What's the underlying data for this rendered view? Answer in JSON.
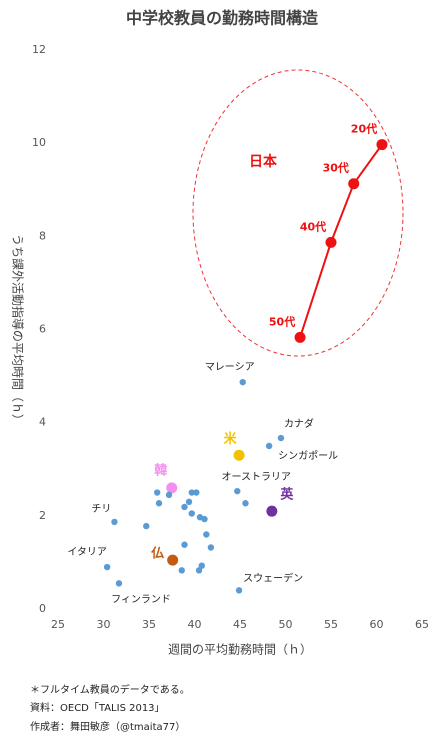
{
  "chart_data": {
    "type": "scatter",
    "title": "中学校教員の勤務時間構造",
    "x_label": "週間の平均勤務時間（ｈ）",
    "y_label": "うち課外活動指導の平均時間（ｈ）",
    "xlim": [
      25,
      65
    ],
    "xticks": [
      25,
      30,
      35,
      40,
      45,
      50,
      55,
      60,
      65
    ],
    "ylim": [
      0,
      12
    ],
    "yticks": [
      0,
      2,
      4,
      6,
      8,
      10,
      12
    ],
    "grid": false,
    "series": [
      {
        "name": "日本",
        "color": "#ee1111",
        "line": true,
        "x": [
          60.6,
          57.5,
          55.0,
          51.6
        ],
        "y": [
          9.97,
          9.13,
          7.87,
          5.83
        ],
        "point_labels": [
          "20代",
          "30代",
          "40代",
          "50代"
        ]
      },
      {
        "name": "米",
        "color": "#f2c200",
        "x": [
          44.9
        ],
        "y": [
          3.3
        ]
      },
      {
        "name": "韓",
        "color": "#f48ff0",
        "x": [
          37.5
        ],
        "y": [
          2.6
        ]
      },
      {
        "name": "英",
        "color": "#7030a0",
        "x": [
          48.5
        ],
        "y": [
          2.1
        ]
      },
      {
        "name": "仏",
        "color": "#c55a11",
        "x": [
          37.6
        ],
        "y": [
          1.05
        ]
      },
      {
        "color": "#5b9bd5",
        "x": [
          45.3,
          49.5,
          48.2,
          44.7,
          31.2,
          30.4,
          31.7,
          44.9,
          35.9,
          36.1,
          37.2,
          38.9,
          39.4,
          39.7,
          40.2,
          39.7,
          40.6,
          41.1,
          41.3,
          41.8,
          40.8,
          40.5,
          38.6,
          38.9,
          34.7,
          45.6
        ],
        "y": [
          4.87,
          3.67,
          3.5,
          2.53,
          1.87,
          0.9,
          0.55,
          0.4,
          2.5,
          2.27,
          2.45,
          2.19,
          2.3,
          2.5,
          2.5,
          2.05,
          1.97,
          1.93,
          1.6,
          1.32,
          0.93,
          0.83,
          0.83,
          1.38,
          1.78,
          2.27
        ],
        "point_labels": [
          "マレーシア",
          "カナダ",
          "シンガポール",
          "オーストラリア",
          "チリ",
          "イタリア",
          "フィンランド",
          "スウェーデン",
          null,
          null,
          null,
          null,
          null,
          null,
          null,
          null,
          null,
          null,
          null,
          null,
          null,
          null,
          null,
          null,
          null,
          null
        ]
      }
    ],
    "notes": [
      "＊フルタイム教員のデータである。",
      "資料：OECD「TALIS 2013」",
      "作成者：舞田敏彦（@tmaita77）"
    ]
  }
}
